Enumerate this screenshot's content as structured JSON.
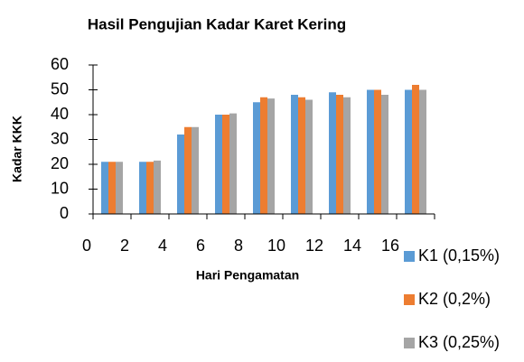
{
  "chart_data": {
    "type": "bar",
    "title": "Hasil Pengujian Kadar Karet Kering",
    "xlabel": "Hari Pengamatan",
    "ylabel": "Kadar KKK",
    "categories": [
      "0",
      "2",
      "4",
      "6",
      "8",
      "10",
      "12",
      "14",
      "16"
    ],
    "series": [
      {
        "name": "K1 (0,15%)",
        "color": "#5b9bd5",
        "values": [
          21,
          21,
          32,
          40,
          45,
          48,
          49,
          50,
          50
        ]
      },
      {
        "name": "K2 (0,2%)",
        "color": "#ed7d31",
        "values": [
          21,
          21,
          35,
          40,
          47,
          47,
          48,
          50,
          52
        ]
      },
      {
        "name": "K3 (0,25%)",
        "color": "#a5a5a5",
        "values": [
          21,
          21.5,
          35,
          40.5,
          46.5,
          46,
          47,
          48,
          50
        ]
      }
    ],
    "ylim": [
      0,
      60
    ],
    "yticks": [
      0,
      10,
      20,
      30,
      40,
      50,
      60
    ],
    "grid": false,
    "legend": "bottom-right"
  }
}
